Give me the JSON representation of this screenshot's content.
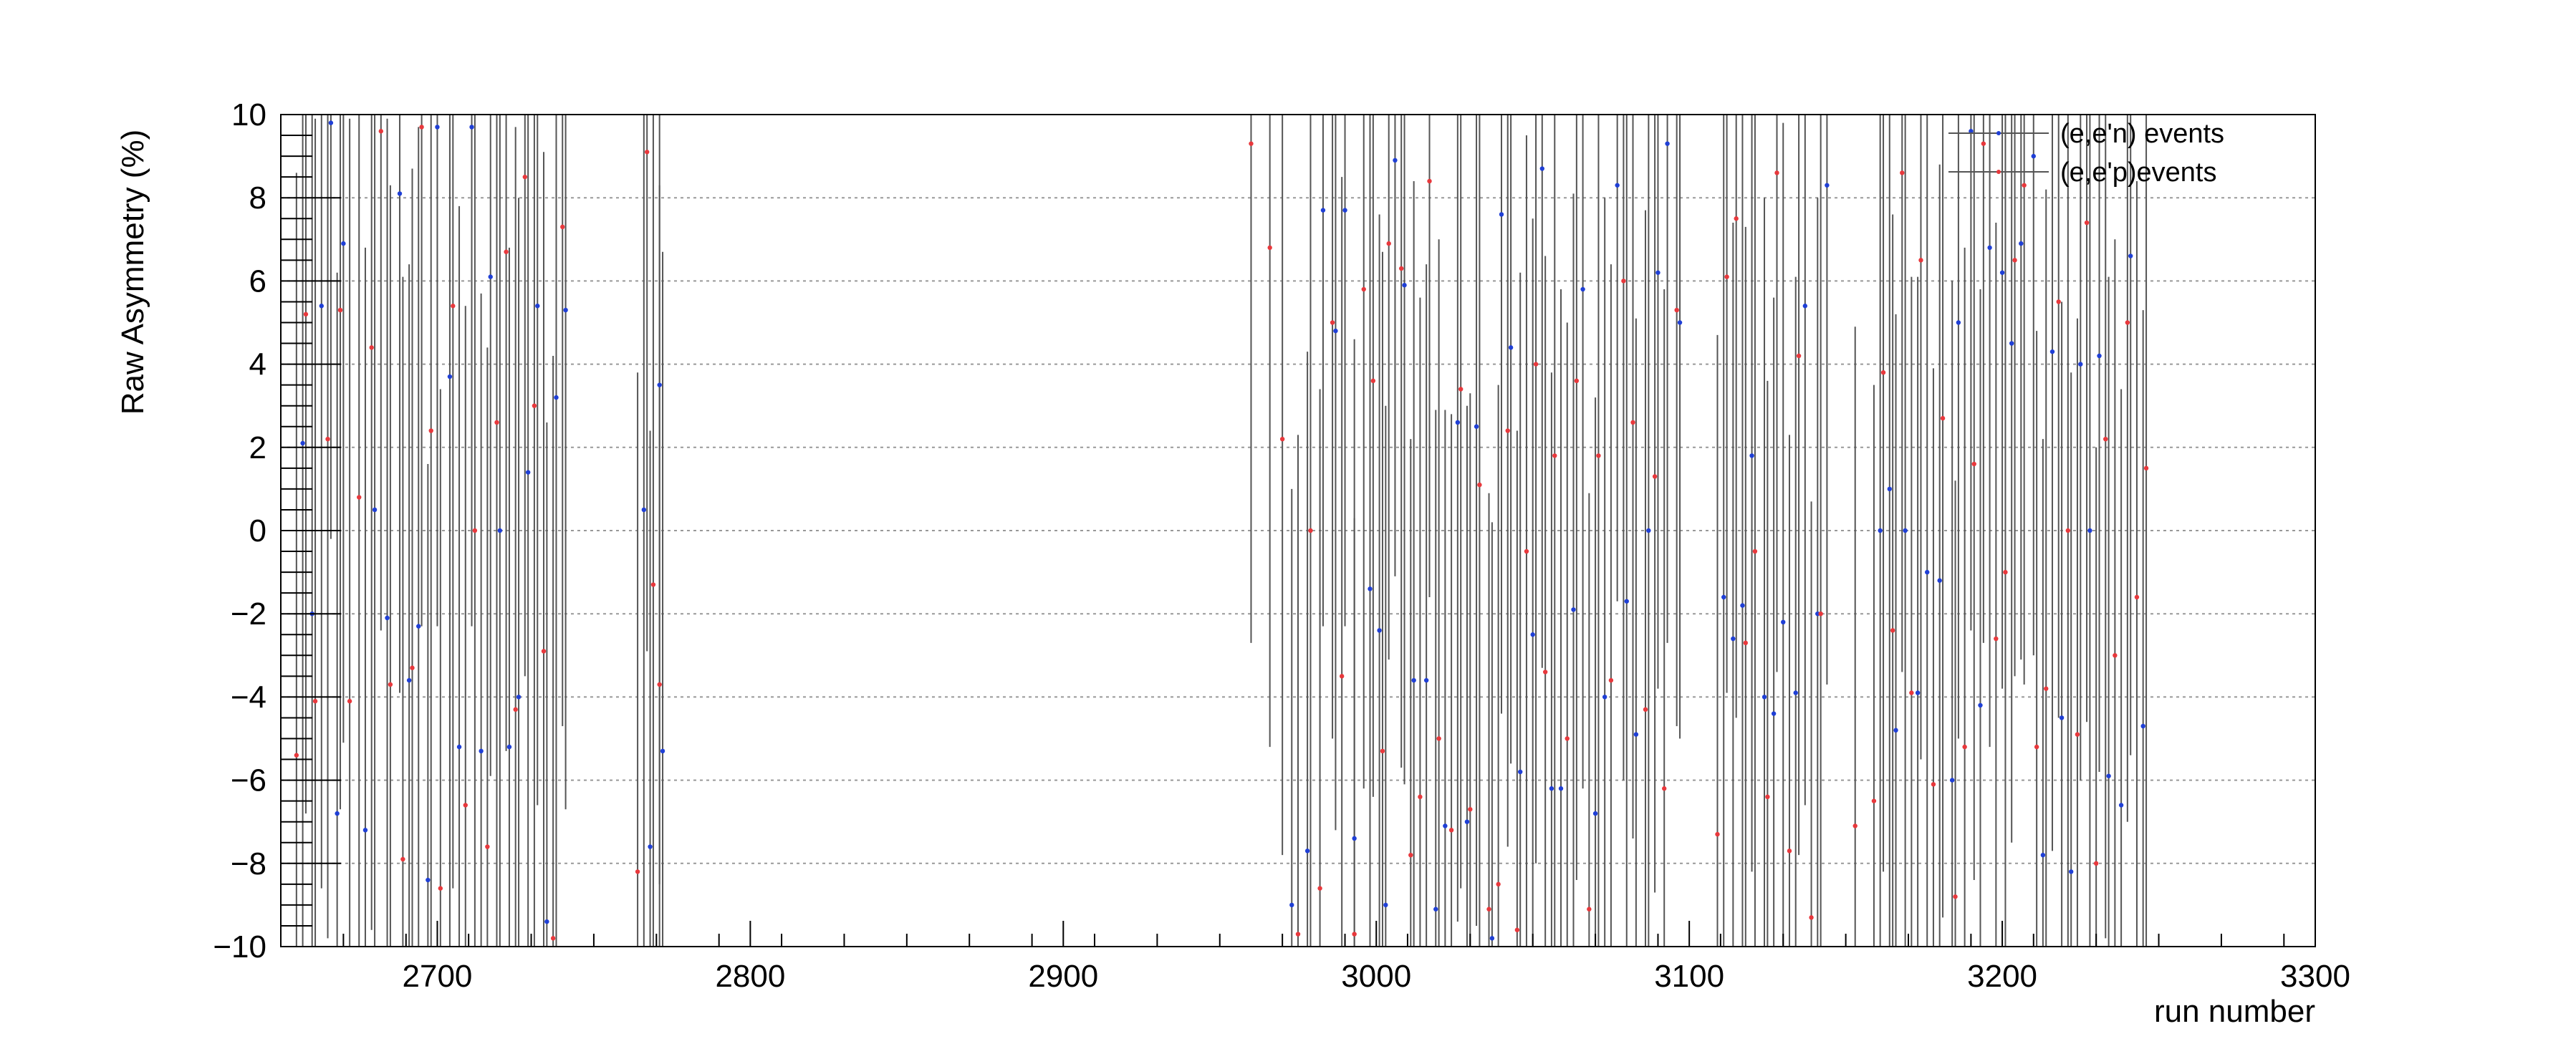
{
  "chart_data": {
    "type": "scatter",
    "title": "",
    "xlabel": "run number",
    "ylabel": "Raw Asymmetry (%)",
    "xlim": [
      2650,
      3300
    ],
    "ylim": [
      -10,
      10
    ],
    "xticks": [
      2700,
      2800,
      2900,
      3000,
      3100,
      3200,
      3300
    ],
    "yticks": [
      -10,
      -8,
      -6,
      -4,
      -2,
      0,
      2,
      4,
      6,
      8,
      10
    ],
    "grid": "horizontal dotted",
    "legend_position": "top-right",
    "colors": {
      "neutron": "#1f3fd6",
      "proton": "#e8383c",
      "error_bar": "#555555",
      "grid": "#999999"
    },
    "series": [
      {
        "name": "(e,e'n) events",
        "color": "#1f3fd6",
        "points": [
          [
            2657,
            2.1,
            18
          ],
          [
            2660,
            -2.0,
            12
          ],
          [
            2663,
            5.4,
            14
          ],
          [
            2666,
            9.8,
            10
          ],
          [
            2668,
            -6.8,
            13
          ],
          [
            2670,
            6.9,
            12
          ],
          [
            2677,
            -7.2,
            14
          ],
          [
            2680,
            0.5,
            16
          ],
          [
            2684,
            -2.1,
            12
          ],
          [
            2688,
            8.1,
            12
          ],
          [
            2691,
            -3.6,
            10
          ],
          [
            2694,
            -2.3,
            12
          ],
          [
            2697,
            -8.4,
            10
          ],
          [
            2700,
            9.7,
            12
          ],
          [
            2704,
            3.7,
            14
          ],
          [
            2707,
            -5.2,
            13
          ],
          [
            2711,
            9.7,
            12
          ],
          [
            2714,
            -5.3,
            11
          ],
          [
            2717,
            6.1,
            12
          ],
          [
            2720,
            0.0,
            16
          ],
          [
            2723,
            -5.2,
            12
          ],
          [
            2726,
            -4.0,
            12
          ],
          [
            2729,
            1.4,
            14
          ],
          [
            2732,
            5.4,
            12
          ],
          [
            2735,
            -9.4,
            12
          ],
          [
            2738,
            3.2,
            14
          ],
          [
            2741,
            5.3,
            12
          ],
          [
            2766,
            0.5,
            12
          ],
          [
            2768,
            -7.6,
            10
          ],
          [
            2771,
            3.5,
            12
          ],
          [
            2772,
            -5.3,
            12
          ],
          [
            2973,
            -9.0,
            10
          ],
          [
            2978,
            -7.7,
            12
          ],
          [
            2983,
            7.7,
            10
          ],
          [
            2987,
            4.8,
            12
          ],
          [
            2990,
            7.7,
            10
          ],
          [
            2993,
            -7.4,
            12
          ],
          [
            2998,
            -1.4,
            12
          ],
          [
            3001,
            -2.4,
            10
          ],
          [
            3003,
            -9.0,
            12
          ],
          [
            3006,
            8.9,
            10
          ],
          [
            3009,
            5.9,
            12
          ],
          [
            3012,
            -3.6,
            12
          ],
          [
            3016,
            -3.6,
            10
          ],
          [
            3019,
            -9.1,
            12
          ],
          [
            3022,
            -7.1,
            10
          ],
          [
            3026,
            2.6,
            12
          ],
          [
            3029,
            -7.0,
            10
          ],
          [
            3032,
            2.5,
            12
          ],
          [
            3037,
            -9.8,
            10
          ],
          [
            3040,
            7.6,
            12
          ],
          [
            3043,
            4.4,
            10
          ],
          [
            3046,
            -5.8,
            12
          ],
          [
            3050,
            -2.5,
            10
          ],
          [
            3053,
            8.7,
            12
          ],
          [
            3056,
            -6.2,
            10
          ],
          [
            3059,
            -6.2,
            12
          ],
          [
            3063,
            -1.9,
            10
          ],
          [
            3066,
            5.8,
            12
          ],
          [
            3070,
            -6.8,
            10
          ],
          [
            3073,
            -4.0,
            12
          ],
          [
            3077,
            8.3,
            10
          ],
          [
            3080,
            -1.7,
            12
          ],
          [
            3083,
            -4.9,
            10
          ],
          [
            3087,
            0.0,
            12
          ],
          [
            3090,
            6.2,
            10
          ],
          [
            3093,
            9.3,
            12
          ],
          [
            3097,
            5.0,
            10
          ],
          [
            3111,
            -1.6,
            12
          ],
          [
            3114,
            -2.6,
            10
          ],
          [
            3117,
            -1.8,
            12
          ],
          [
            3120,
            1.8,
            10
          ],
          [
            3124,
            -4.0,
            12
          ],
          [
            3127,
            -4.4,
            10
          ],
          [
            3130,
            -2.2,
            12
          ],
          [
            3134,
            -3.9,
            10
          ],
          [
            3137,
            5.4,
            12
          ],
          [
            3141,
            -2.0,
            10
          ],
          [
            3144,
            8.3,
            12
          ],
          [
            3161,
            0.0,
            10
          ],
          [
            3164,
            1.0,
            12
          ],
          [
            3166,
            -4.8,
            10
          ],
          [
            3169,
            0.0,
            12
          ],
          [
            3173,
            -3.9,
            10
          ],
          [
            3176,
            -1.0,
            12
          ],
          [
            3180,
            -1.2,
            10
          ],
          [
            3184,
            -6.0,
            12
          ],
          [
            3186,
            5.0,
            10
          ],
          [
            3190,
            9.6,
            12
          ],
          [
            3193,
            -4.2,
            10
          ],
          [
            3196,
            6.8,
            12
          ],
          [
            3200,
            6.2,
            10
          ],
          [
            3203,
            4.5,
            12
          ],
          [
            3206,
            6.9,
            10
          ],
          [
            3210,
            9.0,
            12
          ],
          [
            3213,
            -7.8,
            10
          ],
          [
            3216,
            4.3,
            12
          ],
          [
            3219,
            -4.5,
            10
          ],
          [
            3222,
            -8.2,
            12
          ],
          [
            3225,
            4.0,
            10
          ],
          [
            3228,
            0.0,
            12
          ],
          [
            3231,
            4.2,
            10
          ],
          [
            3234,
            -5.9,
            12
          ],
          [
            3238,
            -6.6,
            10
          ],
          [
            3241,
            6.6,
            12
          ],
          [
            3245,
            -4.7,
            10
          ]
        ]
      },
      {
        "name": "(e,e'p)events",
        "color": "#e8383c",
        "points": [
          [
            2655,
            -5.4,
            14
          ],
          [
            2658,
            5.2,
            12
          ],
          [
            2661,
            -4.1,
            14
          ],
          [
            2665,
            2.2,
            12
          ],
          [
            2669,
            5.3,
            12
          ],
          [
            2672,
            -4.1,
            14
          ],
          [
            2675,
            0.8,
            12
          ],
          [
            2679,
            4.4,
            14
          ],
          [
            2682,
            9.6,
            12
          ],
          [
            2685,
            -3.7,
            12
          ],
          [
            2689,
            -7.9,
            14
          ],
          [
            2692,
            -3.3,
            12
          ],
          [
            2695,
            9.7,
            12
          ],
          [
            2698,
            2.4,
            14
          ],
          [
            2701,
            -8.6,
            12
          ],
          [
            2705,
            5.4,
            14
          ],
          [
            2709,
            -6.6,
            12
          ],
          [
            2712,
            0.0,
            14
          ],
          [
            2716,
            -7.6,
            12
          ],
          [
            2719,
            2.6,
            14
          ],
          [
            2722,
            6.7,
            12
          ],
          [
            2725,
            -4.3,
            14
          ],
          [
            2728,
            8.5,
            12
          ],
          [
            2731,
            3.0,
            14
          ],
          [
            2734,
            -2.9,
            12
          ],
          [
            2737,
            -9.8,
            14
          ],
          [
            2740,
            7.3,
            12
          ],
          [
            2764,
            -8.2,
            12
          ],
          [
            2767,
            9.1,
            12
          ],
          [
            2769,
            -1.3,
            12
          ],
          [
            2771,
            -3.7,
            12
          ],
          [
            2960,
            9.3,
            12
          ],
          [
            2966,
            6.8,
            12
          ],
          [
            2970,
            2.2,
            10
          ],
          [
            2975,
            -9.7,
            12
          ],
          [
            2979,
            0.0,
            10
          ],
          [
            2982,
            -8.6,
            12
          ],
          [
            2986,
            5.0,
            10
          ],
          [
            2989,
            -3.5,
            12
          ],
          [
            2993,
            -9.7,
            10
          ],
          [
            2996,
            5.8,
            12
          ],
          [
            2999,
            3.6,
            10
          ],
          [
            3002,
            -5.3,
            12
          ],
          [
            3004,
            6.9,
            10
          ],
          [
            3008,
            6.3,
            12
          ],
          [
            3011,
            -7.8,
            10
          ],
          [
            3014,
            -6.4,
            12
          ],
          [
            3017,
            8.4,
            10
          ],
          [
            3020,
            -5.0,
            12
          ],
          [
            3024,
            -7.2,
            10
          ],
          [
            3027,
            3.4,
            12
          ],
          [
            3030,
            -6.7,
            10
          ],
          [
            3033,
            1.1,
            12
          ],
          [
            3036,
            -9.1,
            10
          ],
          [
            3039,
            -8.5,
            12
          ],
          [
            3042,
            2.4,
            10
          ],
          [
            3045,
            -9.6,
            12
          ],
          [
            3048,
            -0.5,
            10
          ],
          [
            3051,
            4.0,
            12
          ],
          [
            3054,
            -3.4,
            10
          ],
          [
            3057,
            1.8,
            12
          ],
          [
            3061,
            -5.0,
            10
          ],
          [
            3064,
            3.6,
            12
          ],
          [
            3068,
            -9.1,
            10
          ],
          [
            3071,
            1.8,
            12
          ],
          [
            3075,
            -3.6,
            10
          ],
          [
            3079,
            6.0,
            12
          ],
          [
            3082,
            2.6,
            10
          ],
          [
            3086,
            -4.3,
            12
          ],
          [
            3089,
            1.3,
            10
          ],
          [
            3092,
            -6.2,
            12
          ],
          [
            3096,
            5.3,
            10
          ],
          [
            3109,
            -7.3,
            12
          ],
          [
            3112,
            6.1,
            10
          ],
          [
            3115,
            7.5,
            12
          ],
          [
            3118,
            -2.7,
            10
          ],
          [
            3121,
            -0.5,
            12
          ],
          [
            3125,
            -6.4,
            10
          ],
          [
            3128,
            8.6,
            12
          ],
          [
            3132,
            -7.7,
            10
          ],
          [
            3135,
            4.2,
            12
          ],
          [
            3139,
            -9.3,
            10
          ],
          [
            3142,
            -2.0,
            12
          ],
          [
            3153,
            -7.1,
            12
          ],
          [
            3159,
            -6.5,
            10
          ],
          [
            3162,
            3.8,
            12
          ],
          [
            3165,
            -2.4,
            10
          ],
          [
            3168,
            8.6,
            12
          ],
          [
            3171,
            -3.9,
            10
          ],
          [
            3174,
            6.5,
            12
          ],
          [
            3178,
            -6.1,
            10
          ],
          [
            3181,
            2.7,
            12
          ],
          [
            3185,
            -8.8,
            10
          ],
          [
            3188,
            -5.2,
            12
          ],
          [
            3191,
            1.6,
            10
          ],
          [
            3194,
            9.3,
            12
          ],
          [
            3198,
            -2.6,
            10
          ],
          [
            3201,
            -1.0,
            12
          ],
          [
            3204,
            6.5,
            10
          ],
          [
            3207,
            8.3,
            12
          ],
          [
            3211,
            -5.2,
            10
          ],
          [
            3214,
            -3.8,
            12
          ],
          [
            3218,
            5.5,
            10
          ],
          [
            3221,
            0.0,
            12
          ],
          [
            3224,
            -4.9,
            10
          ],
          [
            3227,
            7.4,
            12
          ],
          [
            3230,
            -8.0,
            10
          ],
          [
            3233,
            2.2,
            12
          ],
          [
            3236,
            -3.0,
            10
          ],
          [
            3240,
            5.0,
            12
          ],
          [
            3243,
            -1.6,
            10
          ],
          [
            3246,
            1.5,
            12
          ]
        ]
      }
    ]
  }
}
